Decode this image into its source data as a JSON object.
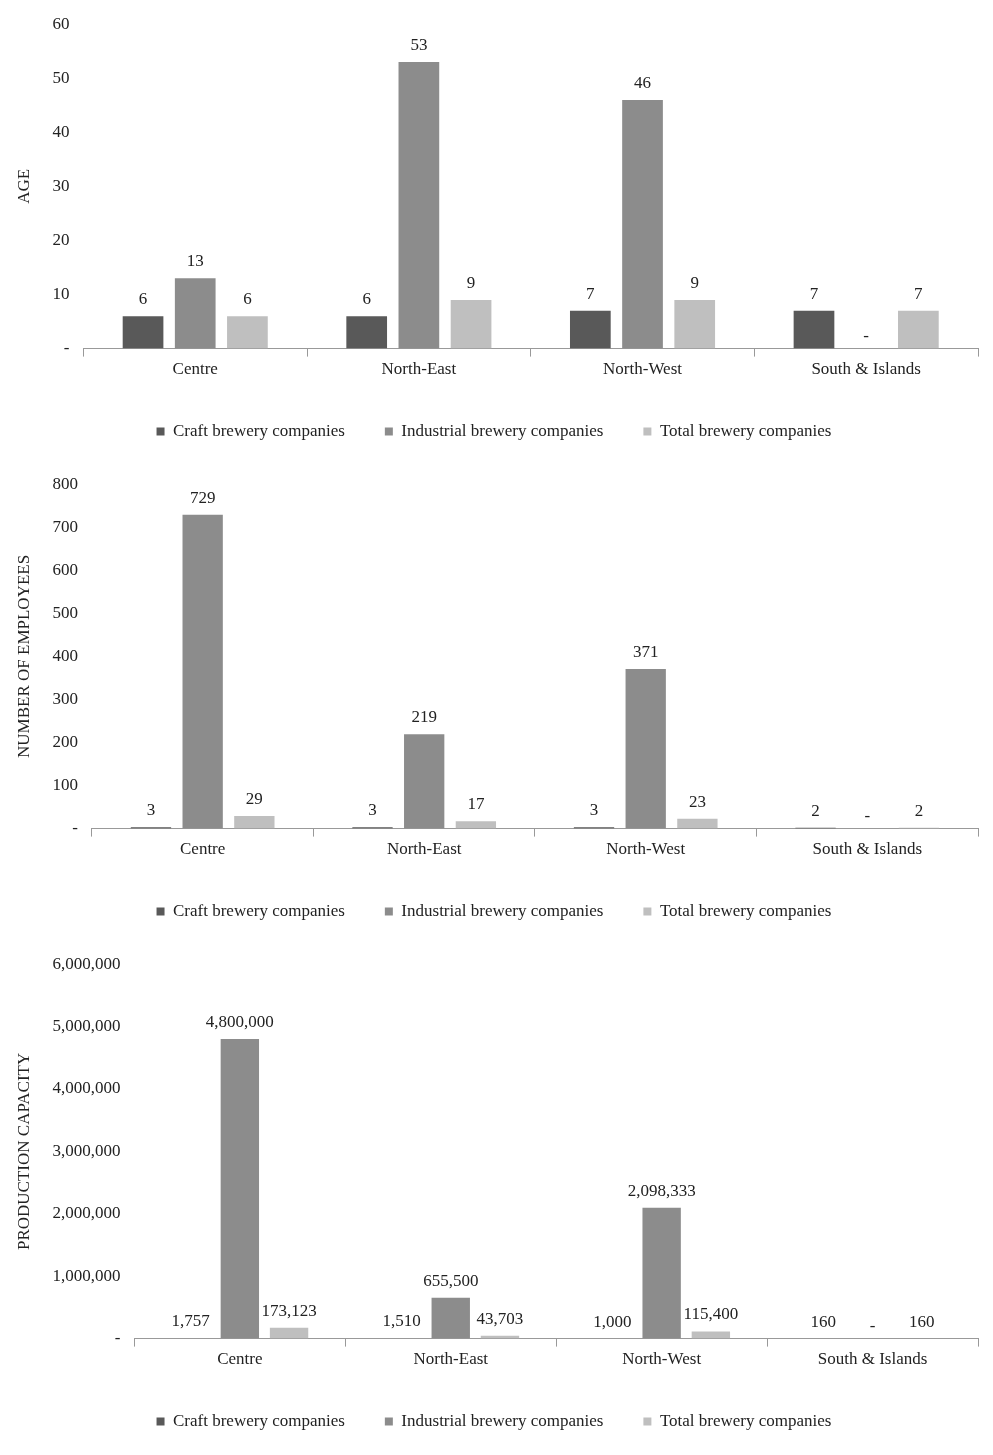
{
  "chart_data": [
    {
      "type": "bar",
      "ylabel": "AGE",
      "categories": [
        "Centre",
        "North-East",
        "North-West",
        "South & Islands"
      ],
      "ylim": [
        0,
        60
      ],
      "yticks": [
        {
          "value": 0,
          "label": "-"
        },
        10,
        20,
        30,
        40,
        50,
        60
      ],
      "grid": false,
      "legend": "bottom",
      "series": [
        {
          "name": "Craft brewery companies",
          "color": "#595959",
          "values": [
            6,
            6,
            7,
            7
          ],
          "value_labels": [
            "6",
            "6",
            "7",
            "7"
          ]
        },
        {
          "name": "Industrial brewery companies",
          "color": "#8c8c8c",
          "values": [
            13,
            53,
            46,
            null
          ],
          "value_labels": [
            "13",
            "53",
            "46",
            "-"
          ]
        },
        {
          "name": "Total brewery companies",
          "color": "#bfbfbf",
          "values": [
            6,
            9,
            9,
            7
          ],
          "value_labels": [
            "6",
            "9",
            "9",
            "7"
          ]
        }
      ]
    },
    {
      "type": "bar",
      "ylabel": "NUMBER OF EMPLOYEES",
      "categories": [
        "Centre",
        "North-East",
        "North-West",
        "South & Islands"
      ],
      "ylim": [
        0,
        800
      ],
      "yticks": [
        {
          "value": 0,
          "label": "-"
        },
        100,
        200,
        300,
        400,
        500,
        600,
        700,
        800
      ],
      "grid": false,
      "legend": "bottom",
      "series": [
        {
          "name": "Craft brewery companies",
          "color": "#595959",
          "values": [
            3,
            3,
            3,
            2
          ],
          "value_labels": [
            "3",
            "3",
            "3",
            "2"
          ]
        },
        {
          "name": "Industrial brewery companies",
          "color": "#8c8c8c",
          "values": [
            729,
            219,
            371,
            null
          ],
          "value_labels": [
            "729",
            "219",
            "371",
            "-"
          ]
        },
        {
          "name": "Total brewery companies",
          "color": "#bfbfbf",
          "values": [
            29,
            17,
            23,
            2
          ],
          "value_labels": [
            "29",
            "17",
            "23",
            "2"
          ]
        }
      ]
    },
    {
      "type": "bar",
      "ylabel": "PRODUCTION CAPACITY",
      "categories": [
        "Centre",
        "North-East",
        "North-West",
        "South & Islands"
      ],
      "ylim": [
        0,
        6000000
      ],
      "yticks": [
        {
          "value": 0,
          "label": "-"
        },
        {
          "value": 1000000,
          "label": "1,000,000"
        },
        {
          "value": 2000000,
          "label": "2,000,000"
        },
        {
          "value": 3000000,
          "label": "3,000,000"
        },
        {
          "value": 4000000,
          "label": "4,000,000"
        },
        {
          "value": 5000000,
          "label": "5,000,000"
        },
        {
          "value": 6000000,
          "label": "6,000,000"
        }
      ],
      "grid": false,
      "legend": "bottom",
      "series": [
        {
          "name": "Craft brewery companies",
          "color": "#595959",
          "values": [
            1757,
            1510,
            1000,
            160
          ],
          "value_labels": [
            "1,757",
            "1,510",
            "1,000",
            "160"
          ]
        },
        {
          "name": "Industrial brewery companies",
          "color": "#8c8c8c",
          "values": [
            4800000,
            655500,
            2098333,
            null
          ],
          "value_labels": [
            "4,800,000",
            "655,500",
            "2,098,333",
            "-"
          ]
        },
        {
          "name": "Total brewery companies",
          "color": "#bfbfbf",
          "values": [
            173123,
            43703,
            115400,
            160
          ],
          "value_labels": [
            "173,123",
            "43,703",
            "115,400",
            "160"
          ]
        }
      ]
    }
  ]
}
